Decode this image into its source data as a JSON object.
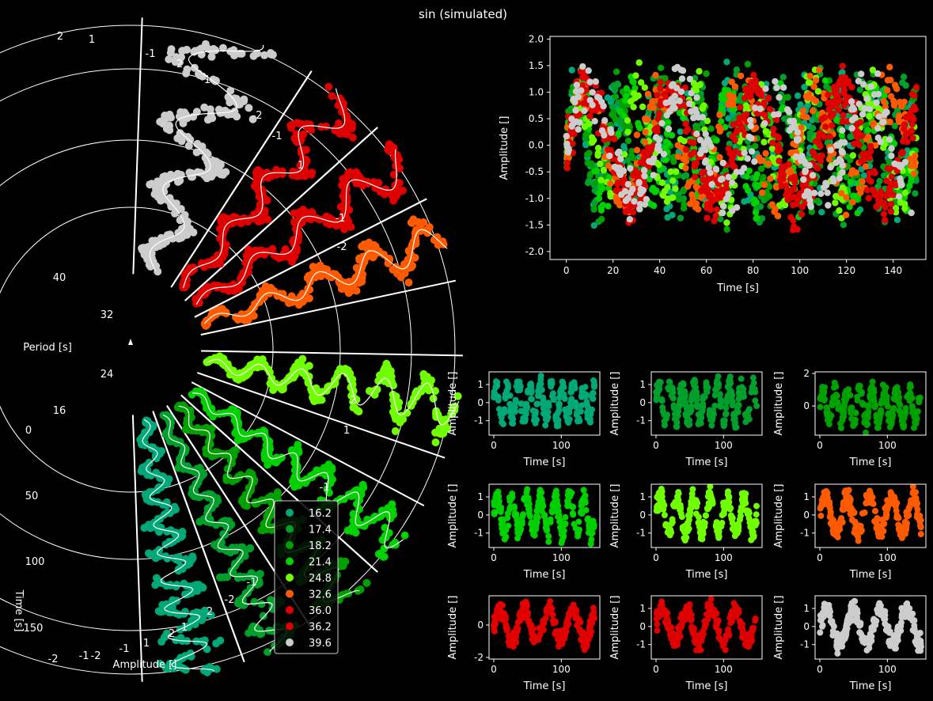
{
  "figure": {
    "title": "sin (simulated)"
  },
  "colors": {
    "background": "#000000",
    "foreground": "#ffffff",
    "series": [
      "#00a878",
      "#009e2a",
      "#00a000",
      "#00d000",
      "#70ff00",
      "#ff5a00",
      "#e00000",
      "#dd0000",
      "#cccccc"
    ]
  },
  "chart_data": [
    {
      "id": "polar",
      "type": "scatter",
      "projection": "polar-stacked",
      "labels": {
        "period": "Period [s]",
        "time": "Time [s]",
        "amplitude": "Amplitude []"
      },
      "period_ticks": [
        "16",
        "24",
        "32",
        "40"
      ],
      "time_ticks": [
        "0",
        "50",
        "100",
        "150"
      ],
      "amplitude_ticks": [
        "-2",
        "-1",
        "1",
        "2"
      ],
      "legend": {
        "placement": "lower-center",
        "entries": [
          "16.2",
          "17.4",
          "18.2",
          "21.4",
          "24.8",
          "32.6",
          "36.0",
          "36.2",
          "39.6"
        ]
      },
      "series_periods": [
        16.2,
        17.4,
        18.2,
        21.4,
        24.8,
        32.6,
        36.0,
        36.2,
        39.6
      ],
      "xlim": [
        0,
        150
      ],
      "ylim": [
        -2,
        2
      ]
    },
    {
      "id": "combined",
      "type": "scatter",
      "xlabel": "Time [s]",
      "ylabel": "Amplitude []",
      "xticks": [
        "0",
        "20",
        "40",
        "60",
        "80",
        "100",
        "120",
        "140"
      ],
      "yticks": [
        "-2.0",
        "-1.5",
        "-1.0",
        "-0.5",
        "0.0",
        "0.5",
        "1.0",
        "1.5",
        "2.0"
      ],
      "xlim": [
        -7,
        154
      ],
      "ylim": [
        -2.15,
        2.05
      ],
      "series_periods": [
        16.2,
        17.4,
        18.2,
        21.4,
        24.8,
        32.6,
        36.0,
        36.2,
        39.6
      ]
    },
    {
      "id": "small_multiples",
      "type": "scatter",
      "xlabel": "Time [s]",
      "ylabel": "Amplitude []",
      "panels": [
        {
          "period": 16.2,
          "xticks": [
            "0",
            "100"
          ],
          "yticks": [
            "-1",
            "0",
            "1"
          ],
          "ylim": [
            -1.8,
            1.7
          ]
        },
        {
          "period": 17.4,
          "xticks": [
            "0",
            "100"
          ],
          "yticks": [
            "-1",
            "0",
            "1"
          ],
          "ylim": [
            -1.8,
            1.7
          ]
        },
        {
          "period": 18.2,
          "xticks": [
            "0",
            "100"
          ],
          "yticks": [
            "0",
            "2"
          ],
          "ylim": [
            -1.8,
            2.1
          ]
        },
        {
          "period": 21.4,
          "xticks": [
            "0",
            "100"
          ],
          "yticks": [
            "-1",
            "0",
            "1"
          ],
          "ylim": [
            -1.8,
            1.7
          ]
        },
        {
          "period": 24.8,
          "xticks": [
            "0",
            "100"
          ],
          "yticks": [
            "-1",
            "0",
            "1"
          ],
          "ylim": [
            -1.8,
            1.7
          ]
        },
        {
          "period": 32.6,
          "xticks": [
            "0",
            "100"
          ],
          "yticks": [
            "-1",
            "0",
            "1"
          ],
          "ylim": [
            -1.8,
            1.7
          ]
        },
        {
          "period": 36.0,
          "xticks": [
            "0",
            "100"
          ],
          "yticks": [
            "-2",
            "0"
          ],
          "ylim": [
            -2.1,
            1.8
          ]
        },
        {
          "period": 36.2,
          "xticks": [
            "0",
            "100"
          ],
          "yticks": [
            "-1",
            "0",
            "1"
          ],
          "ylim": [
            -1.8,
            1.7
          ]
        },
        {
          "period": 39.6,
          "xticks": [
            "0",
            "100"
          ],
          "yticks": [
            "-1",
            "0",
            "1"
          ],
          "ylim": [
            -1.8,
            1.7
          ]
        }
      ]
    }
  ]
}
